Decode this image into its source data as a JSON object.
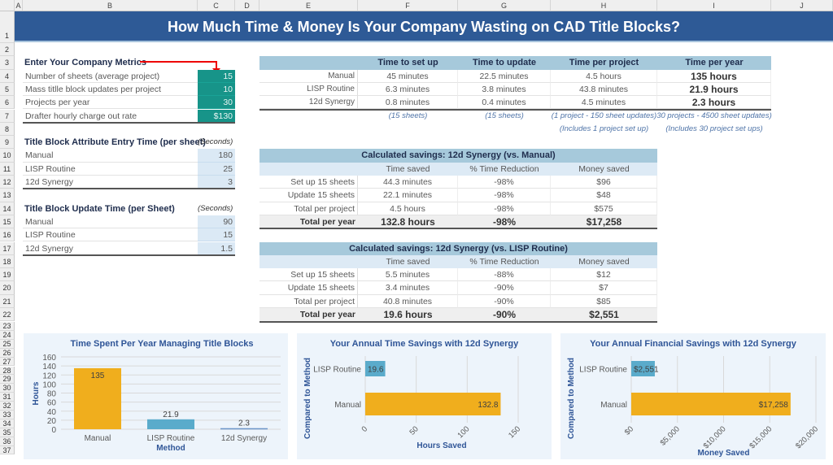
{
  "columns": [
    "A",
    "B",
    "C",
    "D",
    "E",
    "F",
    "G",
    "H",
    "I",
    "J"
  ],
  "title": "How Much Time & Money Is Your Company Wasting on CAD Title Blocks?",
  "metrics": {
    "heading": "Enter Your Company Metrics",
    "rows": [
      {
        "label": "Number of sheets (average project)",
        "value": "15"
      },
      {
        "label": "Mass titlle block updates per project",
        "value": "10"
      },
      {
        "label": "Projects per year",
        "value": "30"
      },
      {
        "label": "Drafter hourly charge out rate",
        "value": "$130"
      }
    ]
  },
  "entry_time": {
    "heading": "Title Block Attribute Entry Time (per sheet)",
    "unit": "(Seconds)",
    "rows": [
      {
        "label": "Manual",
        "value": "180"
      },
      {
        "label": "LISP Routine",
        "value": "25"
      },
      {
        "label": "12d Synergy",
        "value": "3"
      }
    ]
  },
  "update_time": {
    "heading": "Title Block Update Time (per Sheet)",
    "unit": "(Seconds)",
    "rows": [
      {
        "label": "Manual",
        "value": "90"
      },
      {
        "label": "LISP Routine",
        "value": "15"
      },
      {
        "label": "12d Synergy",
        "value": "1.5"
      }
    ]
  },
  "time_table": {
    "headers": [
      "Time to set up",
      "Time to update",
      "Time per project",
      "Time per year"
    ],
    "rows": [
      {
        "label": "Manual",
        "cells": [
          "45 minutes",
          "22.5 minutes",
          "4.5 hours",
          "135 hours"
        ]
      },
      {
        "label": "LISP Routine",
        "cells": [
          "6.3 minutes",
          "3.8 minutes",
          "43.8 minutes",
          "21.9 hours"
        ]
      },
      {
        "label": "12d Synergy",
        "cells": [
          "0.8 minutes",
          "0.4 minutes",
          "4.5 minutes",
          "2.3 hours"
        ]
      }
    ],
    "notes1": [
      "(15 sheets)",
      "(15 sheets)",
      "(1 project - 150 sheet updates)",
      "30 projects - 4500 sheet updates)"
    ],
    "notes2": [
      "(Includes 1 project set up)",
      "(Includes 30 project set ups)"
    ]
  },
  "savings": [
    {
      "title": "Calculated savings: 12d Synergy (vs. Manual)",
      "headers": [
        "Time saved",
        "% Time Reduction",
        "Money saved"
      ],
      "rows": [
        {
          "label": "Set up 15 sheets",
          "cells": [
            "44.3 minutes",
            "-98%",
            "$96"
          ]
        },
        {
          "label": "Update 15 sheets",
          "cells": [
            "22.1 minutes",
            "-98%",
            "$48"
          ]
        },
        {
          "label": "Total per project",
          "cells": [
            "4.5 hours",
            "-98%",
            "$575"
          ]
        }
      ],
      "total": {
        "label": "Total per year",
        "cells": [
          "132.8 hours",
          "-98%",
          "$17,258"
        ]
      }
    },
    {
      "title": "Calculated savings: 12d Synergy (vs. LISP Routine)",
      "headers": [
        "Time saved",
        "% Time Reduction",
        "Money saved"
      ],
      "rows": [
        {
          "label": "Set up 15 sheets",
          "cells": [
            "5.5 minutes",
            "-88%",
            "$12"
          ]
        },
        {
          "label": "Update 15 sheets",
          "cells": [
            "3.4 minutes",
            "-90%",
            "$7"
          ]
        },
        {
          "label": "Total per project",
          "cells": [
            "40.8 minutes",
            "-90%",
            "$85"
          ]
        }
      ],
      "total": {
        "label": "Total per year",
        "cells": [
          "19.6 hours",
          "-90%",
          "$2,551"
        ]
      }
    }
  ],
  "colors": {
    "manual": "#f0ae1d",
    "lisp": "#5aabcb",
    "synergy": "#6a93c8",
    "title_bg": "#2e5a96",
    "axis_title": "#2f5597"
  },
  "chart_data": [
    {
      "type": "bar",
      "title": "Time Spent Per Year Managing Title Blocks",
      "xlabel": "Method",
      "ylabel": "Hours",
      "categories": [
        "Manual",
        "LISP Routine",
        "12d Synergy"
      ],
      "values": [
        135,
        21.9,
        2.3
      ],
      "labels": [
        "135",
        "21.9",
        "2.3"
      ],
      "ylim": [
        0,
        160
      ],
      "yticks": [
        "0",
        "20",
        "40",
        "60",
        "80",
        "100",
        "120",
        "140",
        "160"
      ],
      "grid": true
    },
    {
      "type": "bar",
      "orientation": "horizontal",
      "title": "Your Annual Time Savings with 12d Synergy",
      "xlabel": "Hours Saved",
      "ylabel": "Compared to Method",
      "categories": [
        "LISP Routine",
        "Manual"
      ],
      "values": [
        19.6,
        132.8
      ],
      "labels": [
        "19.6",
        "132.8"
      ],
      "xlim": [
        0,
        150
      ],
      "xticks": [
        "0",
        "50",
        "100",
        "150"
      ],
      "grid": true
    },
    {
      "type": "bar",
      "orientation": "horizontal",
      "title": "Your Annual Financial Savings with 12d Synergy",
      "xlabel": "Money Saved",
      "ylabel": "Compared to Method",
      "categories": [
        "LISP Routine",
        "Manual"
      ],
      "values": [
        2551,
        17258
      ],
      "labels": [
        "$2,551",
        "$17,258"
      ],
      "xlim": [
        0,
        20000
      ],
      "xticks": [
        "$0",
        "$5,000",
        "$10,000",
        "$15,000",
        "$20,000"
      ],
      "grid": true
    }
  ]
}
